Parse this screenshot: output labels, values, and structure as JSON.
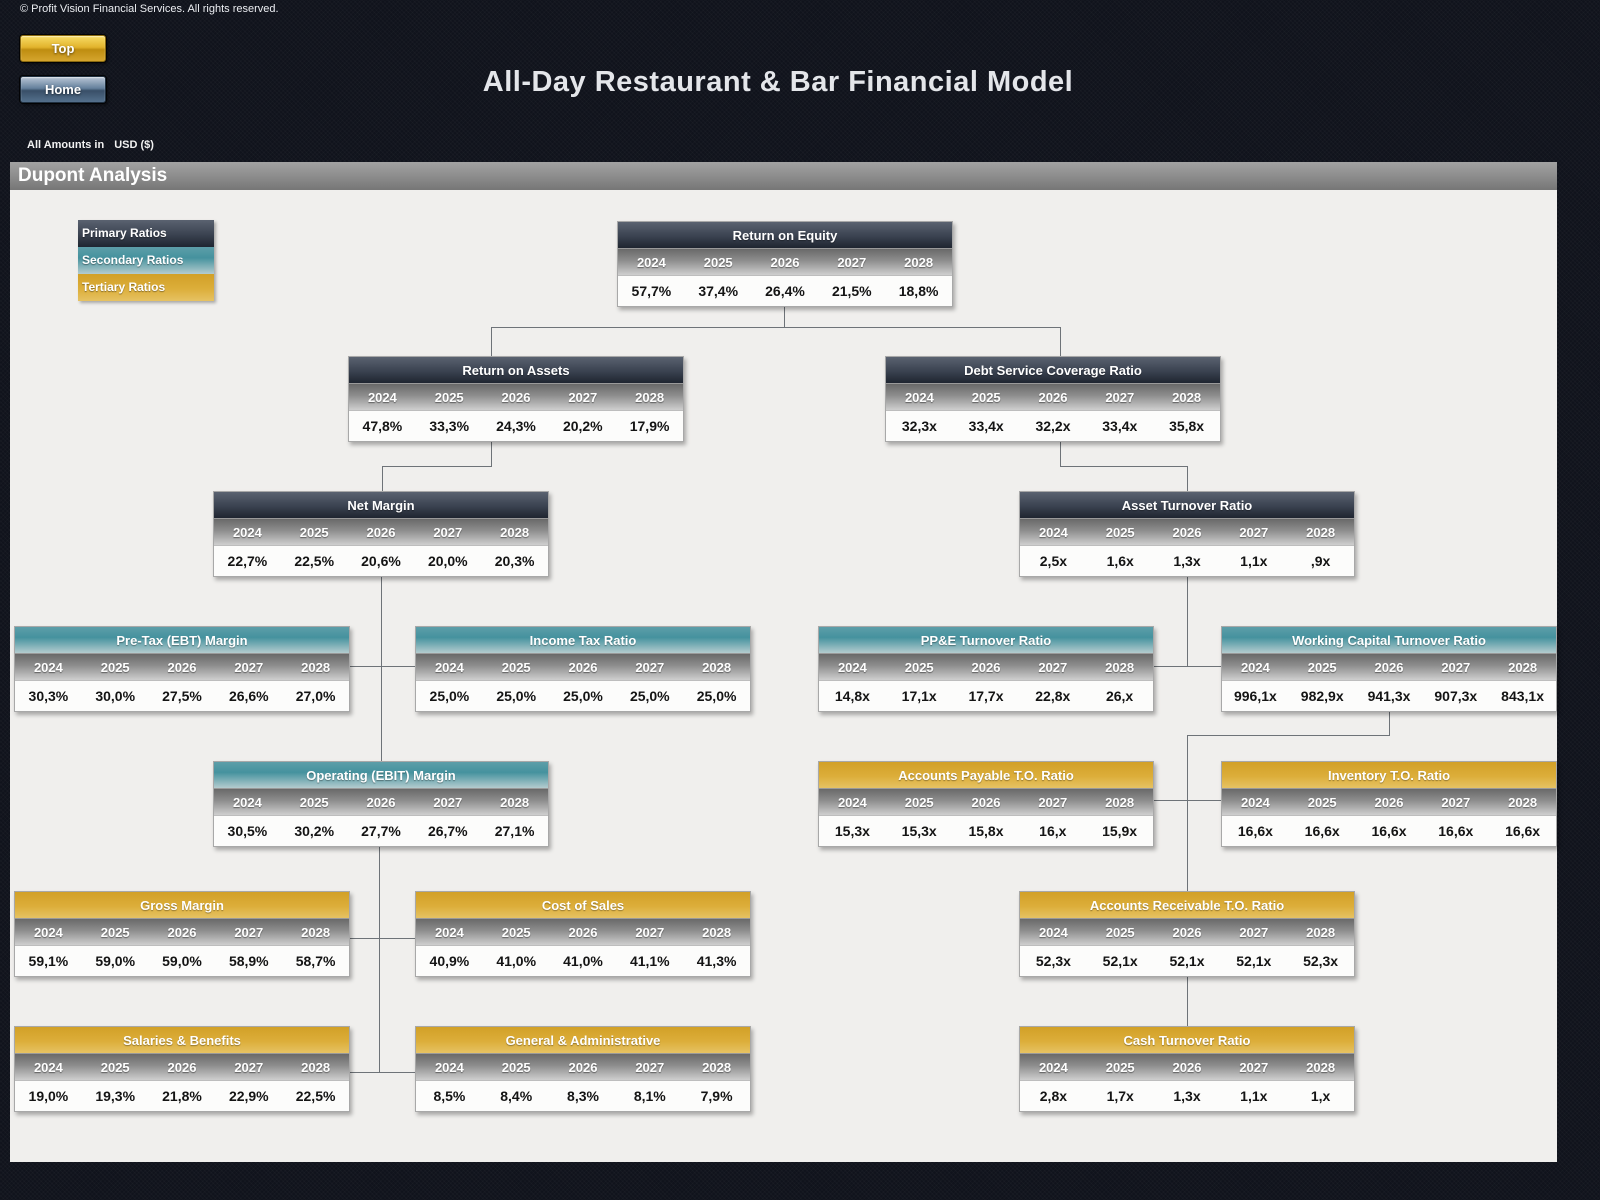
{
  "header": {
    "copyright": "© Profit Vision Financial Services. All rights reserved.",
    "top_button": "Top",
    "home_button": "Home",
    "title": "All-Day Restaurant & Bar Financial Model",
    "amounts_label": "All Amounts in",
    "currency": "USD ($)"
  },
  "page": {
    "section_title": "Dupont Analysis"
  },
  "legend": {
    "items": [
      {
        "label": "Primary Ratios",
        "tier": "primary",
        "color": "#2f3743"
      },
      {
        "label": "Secondary Ratios",
        "tier": "secondary",
        "color": "#45929e"
      },
      {
        "label": "Tertiary Ratios",
        "tier": "tertiary",
        "color": "#d6a72e"
      }
    ]
  },
  "years": [
    "2024",
    "2025",
    "2026",
    "2027",
    "2028"
  ],
  "boxes": [
    {
      "id": "roe",
      "title": "Return on Equity",
      "tier": "primary",
      "values": [
        "57,7%",
        "37,4%",
        "26,4%",
        "21,5%",
        "18,8%"
      ]
    },
    {
      "id": "roa",
      "title": "Return on Assets",
      "tier": "primary",
      "values": [
        "47,8%",
        "33,3%",
        "24,3%",
        "20,2%",
        "17,9%"
      ]
    },
    {
      "id": "dscr",
      "title": "Debt Service Coverage Ratio",
      "tier": "primary",
      "values": [
        "32,3x",
        "33,4x",
        "32,2x",
        "33,4x",
        "35,8x"
      ]
    },
    {
      "id": "net_margin",
      "title": "Net Margin",
      "tier": "primary",
      "values": [
        "22,7%",
        "22,5%",
        "20,6%",
        "20,0%",
        "20,3%"
      ]
    },
    {
      "id": "asset_turnover",
      "title": "Asset Turnover Ratio",
      "tier": "primary",
      "values": [
        "2,5x",
        "1,6x",
        "1,3x",
        "1,1x",
        ",9x"
      ]
    },
    {
      "id": "pretax_margin",
      "title": "Pre-Tax (EBT) Margin",
      "tier": "secondary",
      "values": [
        "30,3%",
        "30,0%",
        "27,5%",
        "26,6%",
        "27,0%"
      ]
    },
    {
      "id": "income_tax",
      "title": "Income Tax Ratio",
      "tier": "secondary",
      "values": [
        "25,0%",
        "25,0%",
        "25,0%",
        "25,0%",
        "25,0%"
      ]
    },
    {
      "id": "ppe_turnover",
      "title": "PP&E Turnover Ratio",
      "tier": "secondary",
      "values": [
        "14,8x",
        "17,1x",
        "17,7x",
        "22,8x",
        "26,x"
      ]
    },
    {
      "id": "wc_turnover",
      "title": "Working Capital Turnover Ratio",
      "tier": "secondary",
      "values": [
        "996,1x",
        "982,9x",
        "941,3x",
        "907,3x",
        "843,1x"
      ]
    },
    {
      "id": "ebit_margin",
      "title": "Operating (EBIT) Margin",
      "tier": "secondary",
      "values": [
        "30,5%",
        "30,2%",
        "27,7%",
        "26,7%",
        "27,1%"
      ]
    },
    {
      "id": "ap_turnover",
      "title": "Accounts Payable T.O. Ratio",
      "tier": "tertiary",
      "values": [
        "15,3x",
        "15,3x",
        "15,8x",
        "16,x",
        "15,9x"
      ]
    },
    {
      "id": "inventory_turnover",
      "title": "Inventory T.O. Ratio",
      "tier": "tertiary",
      "values": [
        "16,6x",
        "16,6x",
        "16,6x",
        "16,6x",
        "16,6x"
      ]
    },
    {
      "id": "gross_margin",
      "title": "Gross Margin",
      "tier": "tertiary",
      "values": [
        "59,1%",
        "59,0%",
        "59,0%",
        "58,9%",
        "58,7%"
      ]
    },
    {
      "id": "cost_of_sales",
      "title": "Cost of Sales",
      "tier": "tertiary",
      "values": [
        "40,9%",
        "41,0%",
        "41,0%",
        "41,1%",
        "41,3%"
      ]
    },
    {
      "id": "ar_turnover",
      "title": "Accounts Receivable T.O. Ratio",
      "tier": "tertiary",
      "values": [
        "52,3x",
        "52,1x",
        "52,1x",
        "52,1x",
        "52,3x"
      ]
    },
    {
      "id": "salaries_benefits",
      "title": "Salaries & Benefits",
      "tier": "tertiary",
      "values": [
        "19,0%",
        "19,3%",
        "21,8%",
        "22,9%",
        "22,5%"
      ]
    },
    {
      "id": "general_admin",
      "title": "General & Administrative",
      "tier": "tertiary",
      "values": [
        "8,5%",
        "8,4%",
        "8,3%",
        "8,1%",
        "7,9%"
      ]
    },
    {
      "id": "cash_turnover",
      "title": "Cash Turnover Ratio",
      "tier": "tertiary",
      "values": [
        "2,8x",
        "1,7x",
        "1,3x",
        "1,1x",
        "1,x"
      ]
    }
  ]
}
